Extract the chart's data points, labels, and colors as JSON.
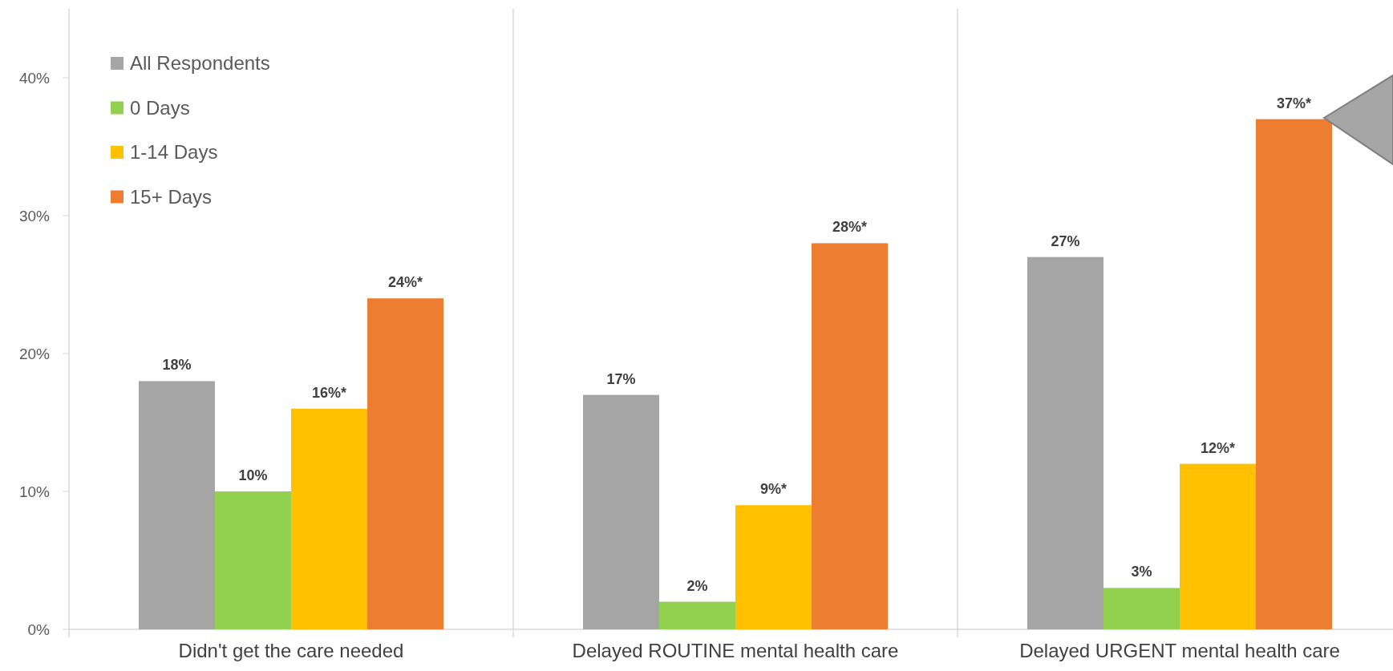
{
  "chart_data": {
    "type": "bar",
    "categories": [
      "Didn't get the care needed",
      "Delayed ROUTINE mental health care",
      "Delayed URGENT mental health care"
    ],
    "series": [
      {
        "name": "All Respondents",
        "color": "#a5a5a5",
        "values": [
          18,
          17,
          27
        ],
        "value_labels": [
          "18%",
          "17%",
          "27%"
        ]
      },
      {
        "name": "0 Days",
        "color": "#92d050",
        "values": [
          10,
          2,
          3
        ],
        "value_labels": [
          "10%",
          "2%",
          "3%"
        ]
      },
      {
        "name": "1-14 Days",
        "color": "#ffc000",
        "values": [
          16,
          9,
          12
        ],
        "value_labels": [
          "16%*",
          "9%*",
          "12%*"
        ]
      },
      {
        "name": "15+ Days",
        "color": "#ed7d31",
        "values": [
          24,
          28,
          37
        ],
        "value_labels": [
          "24%*",
          "28%*",
          "37%*"
        ]
      }
    ],
    "ylim": [
      0,
      45
    ],
    "yticks": [
      {
        "value": 0,
        "label": "0%"
      },
      {
        "value": 10,
        "label": "10%"
      },
      {
        "value": 20,
        "label": "20%"
      },
      {
        "value": 30,
        "label": "30%"
      },
      {
        "value": 40,
        "label": "40%"
      }
    ],
    "grid": false,
    "legend": "top left"
  }
}
